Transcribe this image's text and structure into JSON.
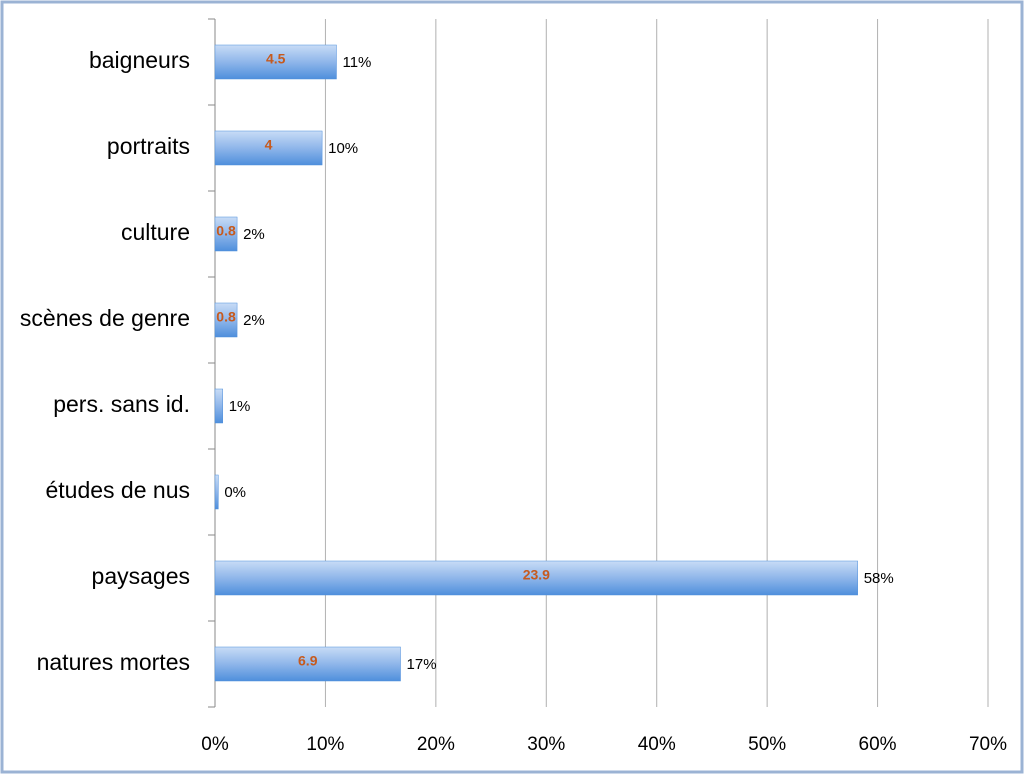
{
  "chart_data": {
    "type": "hbar",
    "categories": [
      "baigneurs",
      "portraits",
      "culture",
      "scènes de genre",
      "pers. sans id.",
      "études de nus",
      "paysages",
      "natures mortes"
    ],
    "values": [
      11,
      9.7,
      2,
      2,
      0.7,
      0.3,
      58.2,
      16.8
    ],
    "value_labels": [
      "11%",
      "10%",
      "2%",
      "2%",
      "1%",
      "0%",
      "58%",
      "17%"
    ],
    "inner_labels": [
      4.5,
      4,
      0.8,
      0.8,
      null,
      null,
      23.9,
      6.9
    ],
    "color": "#4f8fdc",
    "xlim": [
      0,
      70
    ],
    "xticks": [
      {
        "value": 0,
        "label": "0%"
      },
      {
        "value": 10,
        "label": "10%"
      },
      {
        "value": 20,
        "label": "20%"
      },
      {
        "value": 30,
        "label": "30%"
      },
      {
        "value": 40,
        "label": "40%"
      },
      {
        "value": 50,
        "label": "50%"
      },
      {
        "value": 60,
        "label": "60%"
      },
      {
        "value": 70,
        "label": "70%"
      }
    ],
    "grid": true
  }
}
